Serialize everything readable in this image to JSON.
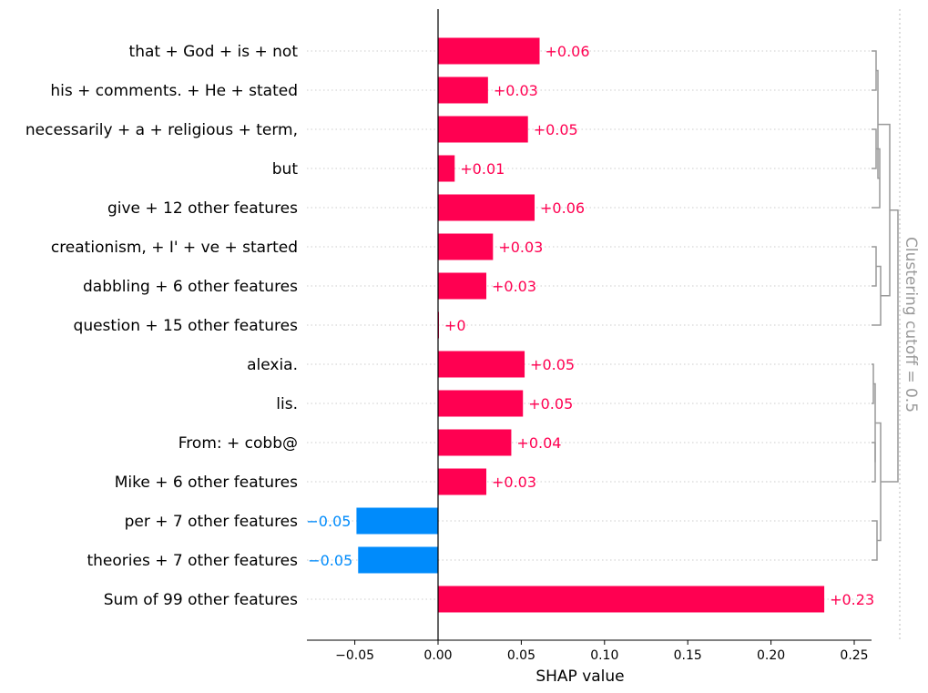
{
  "chart_data": {
    "type": "bar",
    "orientation": "horizontal",
    "xlabel": "SHAP value",
    "xlim": [
      -0.078,
      0.262
    ],
    "xticks": [
      -0.05,
      0.0,
      0.05,
      0.1,
      0.15,
      0.2,
      0.25
    ],
    "xtick_labels": [
      "−0.05",
      "0.00",
      "0.05",
      "0.10",
      "0.15",
      "0.20",
      "0.25"
    ],
    "cutoff_label": "Clustering cutoff = 0.5",
    "colors": {
      "positive": "#ff0051",
      "negative": "#008bfb",
      "dendrogram": "#999999"
    },
    "grid": "horizontal dotted",
    "categories": [
      "that + God + is + not",
      "his + comments. + He + stated",
      "necessarily + a + religious + term,",
      "but",
      "give + 12 other features",
      "creationism, + I' + ve + started",
      "dabbling + 6 other features",
      "question + 15 other features",
      "alexia.",
      "lis.",
      "From: + cobb@",
      "Mike + 6 other features",
      "per + 7 other features",
      "theories + 7 other features",
      "Sum of 99 other features"
    ],
    "values": [
      0.061,
      0.03,
      0.054,
      0.01,
      0.058,
      0.033,
      0.029,
      0.0005,
      0.052,
      0.051,
      0.044,
      0.029,
      -0.049,
      -0.048,
      0.232
    ],
    "value_labels": [
      "+0.06",
      "+0.03",
      "+0.05",
      "+0.01",
      "+0.06",
      "+0.03",
      "+0.03",
      "+0",
      "+0.05",
      "+0.05",
      "+0.04",
      "+0.03",
      "−0.05",
      "−0.05",
      "+0.23"
    ]
  }
}
